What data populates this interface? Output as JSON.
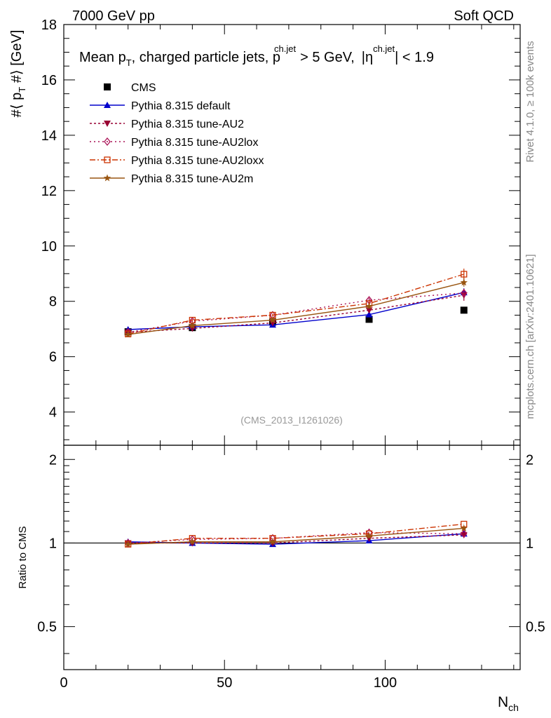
{
  "header": {
    "left": "7000 GeV pp",
    "right": "Soft QCD"
  },
  "side_labels": {
    "rivet": "Rivet 4.1.0, ≥ 100k events",
    "mcplots": "mcplots.cern.ch [arXiv:2401.10621]"
  },
  "chart_data": {
    "type": "line",
    "title_parts": {
      "prefix": "Mean p",
      "sub_t": "T",
      "mid": ", charged particle jets, p",
      "sup_jet": "ch.jet",
      "cut": "> 5 GeV,",
      "eta_sym": "|η",
      "eta_sup": "ch.jet",
      "eta_cut": "| < 1.9"
    },
    "analysis_id": "(CMS_2013_I1261026)",
    "xlabel": {
      "main": "N",
      "sub": "ch"
    },
    "ylabel": {
      "pre": "#⟨ p",
      "sub": "T",
      "post": " #⟩ [GeV]"
    },
    "ratio_ylabel": "Ratio to CMS",
    "xlim": [
      0,
      142
    ],
    "ylim": [
      2.8,
      18
    ],
    "ratio_ylim": [
      0.35,
      2.25
    ],
    "x_ticks": [
      "0",
      "50",
      "100"
    ],
    "x_tick_values": [
      0,
      50,
      100
    ],
    "y_ticks": [
      "4",
      "6",
      "8",
      "10",
      "12",
      "14",
      "16",
      "18"
    ],
    "y_tick_values": [
      4,
      6,
      8,
      10,
      12,
      14,
      16,
      18
    ],
    "ratio_ticks": [
      "0.5",
      "1",
      "2"
    ],
    "ratio_tick_values": [
      0.5,
      1,
      2
    ],
    "x": [
      20,
      40,
      65,
      95,
      124.5
    ],
    "series": [
      {
        "name": "CMS",
        "color": "#000000",
        "marker": "square-filled",
        "dash": "none",
        "values": [
          6.9,
          7.05,
          7.25,
          7.35,
          7.68
        ],
        "errors": [
          0.05,
          0.05,
          0.05,
          0.06,
          0.07
        ],
        "ratio": [
          1.0,
          1.0,
          1.0,
          1.0,
          1.0
        ]
      },
      {
        "name": "Pythia 8.315 default",
        "color": "#0000cc",
        "marker": "triangle-up",
        "dash": "none",
        "values": [
          6.98,
          7.08,
          7.15,
          7.52,
          8.32
        ],
        "errors": [
          0.03,
          0.04,
          0.05,
          0.08,
          0.15
        ],
        "ratio": [
          1.01,
          1.0,
          0.99,
          1.02,
          1.08
        ]
      },
      {
        "name": "Pythia 8.315 tune-AU2",
        "color": "#990033",
        "marker": "triangle-down",
        "dash": "3,3",
        "values": [
          6.88,
          7.02,
          7.22,
          7.68,
          8.22
        ],
        "errors": [
          0.03,
          0.04,
          0.05,
          0.08,
          0.2
        ],
        "ratio": [
          1.0,
          1.0,
          1.0,
          1.04,
          1.07
        ]
      },
      {
        "name": "Pythia 8.315 tune-AU2lox",
        "color": "#aa1155",
        "marker": "diamond-open",
        "dash": "2,4",
        "values": [
          6.88,
          7.28,
          7.5,
          8.04,
          8.3
        ],
        "errors": [
          0.03,
          0.04,
          0.05,
          0.08,
          0.15
        ],
        "ratio": [
          1.0,
          1.03,
          1.04,
          1.09,
          1.08
        ]
      },
      {
        "name": "Pythia 8.315 tune-AU2loxx",
        "color": "#cc3300",
        "marker": "square-open",
        "dash": "8,3,2,3",
        "values": [
          6.82,
          7.32,
          7.5,
          7.92,
          8.98
        ],
        "errors": [
          0.03,
          0.04,
          0.05,
          0.08,
          0.2
        ],
        "ratio": [
          0.99,
          1.04,
          1.04,
          1.08,
          1.17
        ]
      },
      {
        "name": "Pythia 8.315 tune-AU2m",
        "color": "#995511",
        "marker": "star",
        "dash": "none",
        "values": [
          6.8,
          7.12,
          7.32,
          7.82,
          8.68
        ],
        "errors": [
          0.03,
          0.04,
          0.05,
          0.08,
          0.15
        ],
        "ratio": [
          0.99,
          1.01,
          1.01,
          1.06,
          1.13
        ]
      }
    ]
  }
}
